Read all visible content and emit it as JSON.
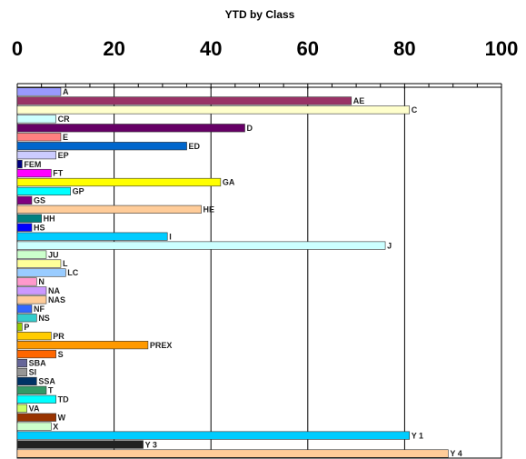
{
  "chart_data": {
    "type": "bar",
    "orientation": "horizontal",
    "subtitle": "YTD by Class",
    "xlim": [
      0,
      100
    ],
    "x_ticks": [
      0,
      20,
      40,
      60,
      80,
      100
    ],
    "x_tick_labels": [
      "0",
      "20",
      "40",
      "60",
      "80",
      "100"
    ],
    "grid": true,
    "categories": [
      "A",
      "AE",
      "C",
      "CR",
      "D",
      "E",
      "ED",
      "EP",
      "FEM",
      "FT",
      "GA",
      "GP",
      "GS",
      "HE",
      "HH",
      "HS",
      "I",
      "J",
      "JU",
      "L",
      "LC",
      "N",
      "NA",
      "NAS",
      "NF",
      "NS",
      "P",
      "PR",
      "PREX",
      "S",
      "SBA",
      "SI",
      "SSA",
      "T",
      "TD",
      "VA",
      "W",
      "X",
      "Y 1",
      "Y 3",
      "Y 4"
    ],
    "values": [
      9,
      69,
      81,
      8,
      47,
      9,
      35,
      8,
      1,
      7,
      42,
      11,
      3,
      38,
      5,
      3,
      31,
      76,
      6,
      9,
      10,
      4,
      6,
      6,
      3,
      4,
      1,
      7,
      27,
      8,
      2,
      2,
      4,
      6,
      8,
      2,
      8,
      7,
      81,
      26,
      89
    ],
    "colors": [
      "#9999ff",
      "#993366",
      "#ffffcc",
      "#ccffff",
      "#660066",
      "#ff8080",
      "#0066cc",
      "#ccccff",
      "#000080",
      "#ff00ff",
      "#ffff00",
      "#00ffff",
      "#800080",
      "#ffcc99",
      "#008080",
      "#0000ff",
      "#00ccff",
      "#ccffff",
      "#ccffcc",
      "#ffff99",
      "#99ccff",
      "#ff99cc",
      "#cc99ff",
      "#ffcc99",
      "#3366ff",
      "#33cccc",
      "#99cc00",
      "#ffcc00",
      "#ff9900",
      "#ff6600",
      "#666699",
      "#969696",
      "#003366",
      "#339966",
      "#00ffff",
      "#ccff66",
      "#993300",
      "#ccffcc",
      "#00ccff",
      "#222222",
      "#ffcc99"
    ]
  }
}
